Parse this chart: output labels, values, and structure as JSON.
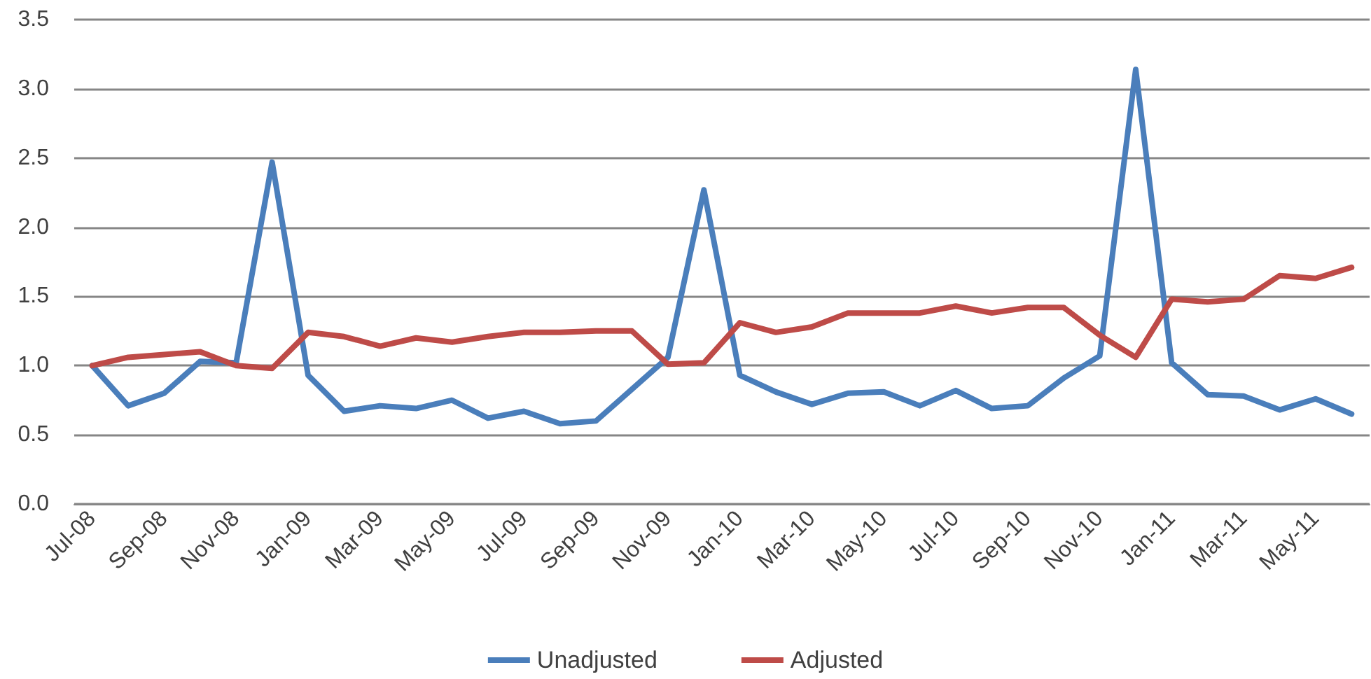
{
  "chart_data": {
    "type": "line",
    "categories": [
      "Jul-08",
      null,
      "Sep-08",
      null,
      "Nov-08",
      null,
      "Jan-09",
      null,
      "Mar-09",
      null,
      "May-09",
      null,
      "Jul-09",
      null,
      "Sep-09",
      null,
      "Nov-09",
      null,
      "Jan-10",
      null,
      "Mar-10",
      null,
      "May-10",
      null,
      "Jul-10",
      null,
      "Sep-10",
      null,
      "Nov-10",
      null,
      "Jan-11",
      null,
      "Mar-11",
      null,
      "May-11",
      null
    ],
    "series": [
      {
        "name": "Unadjusted",
        "color": "#4a7ebb",
        "values": [
          1.0,
          0.71,
          0.8,
          1.03,
          1.02,
          2.47,
          0.93,
          0.67,
          0.71,
          0.69,
          0.75,
          0.62,
          0.67,
          0.58,
          0.6,
          0.83,
          1.06,
          2.27,
          0.93,
          0.81,
          0.72,
          0.8,
          0.81,
          0.71,
          0.82,
          0.69,
          0.71,
          0.91,
          1.07,
          3.14,
          1.02,
          0.79,
          0.78,
          0.68,
          0.76,
          0.65
        ]
      },
      {
        "name": "Adjusted",
        "color": "#be4b48",
        "values": [
          1.0,
          1.06,
          1.08,
          1.1,
          1.0,
          0.98,
          1.24,
          1.21,
          1.14,
          1.2,
          1.17,
          1.21,
          1.24,
          1.24,
          1.25,
          1.25,
          1.01,
          1.02,
          1.31,
          1.24,
          1.28,
          1.38,
          1.38,
          1.38,
          1.43,
          1.38,
          1.42,
          1.42,
          1.22,
          1.06,
          1.48,
          1.46,
          1.48,
          1.65,
          1.63,
          1.71
        ]
      }
    ],
    "ylim": [
      0,
      3.5
    ],
    "yticks": [
      {
        "value": 0,
        "label": "0.0"
      },
      {
        "value": 0.5,
        "label": "0.5"
      },
      {
        "value": 1,
        "label": "1.0"
      },
      {
        "value": 1.5,
        "label": "1.5"
      },
      {
        "value": 2,
        "label": "2.0"
      },
      {
        "value": 2.5,
        "label": "2.5"
      },
      {
        "value": 3,
        "label": "3.0"
      },
      {
        "value": 3.5,
        "label": "3.5"
      }
    ],
    "grid": "y",
    "legend": "bottom",
    "marker": "none",
    "line_style": "solid"
  }
}
